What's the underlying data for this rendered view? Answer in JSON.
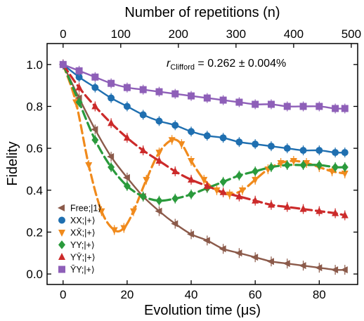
{
  "chart_data": {
    "type": "scatter",
    "xlabel": "Evolution time (μs)",
    "ylabel": "Fidelity",
    "top_xlabel": "Number of repetitions (n)",
    "xlim": [
      -5,
      92
    ],
    "ylim": [
      -0.05,
      1.1
    ],
    "top_xlim": [
      -27.8,
      511.1
    ],
    "x_ticks": [
      0,
      20,
      40,
      60,
      80
    ],
    "y_ticks": [
      "0.0",
      "0.2",
      "0.4",
      "0.6",
      "0.8",
      "1.0"
    ],
    "top_ticks": [
      0,
      100,
      200,
      300,
      400,
      500
    ],
    "annotation": {
      "main": "r",
      "sub": "Clifford",
      "rest": " = 0.262 ± 0.004%"
    },
    "legend_position": "lower-left",
    "series": [
      {
        "name": "Free;|1⟩",
        "color": "#8b5a4a",
        "marker": "triangle-left",
        "x": [
          0,
          5,
          10,
          15,
          20,
          25,
          30,
          35,
          40,
          45,
          50,
          55,
          60,
          65,
          70,
          75,
          80,
          85,
          88
        ],
        "values": [
          1.0,
          0.84,
          0.69,
          0.56,
          0.46,
          0.37,
          0.3,
          0.24,
          0.19,
          0.16,
          0.12,
          0.1,
          0.08,
          0.06,
          0.05,
          0.04,
          0.03,
          0.02,
          0.02
        ]
      },
      {
        "name": "XX;|+⟩",
        "color": "#1f6fb0",
        "marker": "circle",
        "x": [
          0,
          5,
          10,
          15,
          20,
          25,
          30,
          35,
          40,
          45,
          50,
          55,
          60,
          65,
          70,
          75,
          80,
          85,
          88
        ],
        "values": [
          1.0,
          0.94,
          0.89,
          0.84,
          0.8,
          0.76,
          0.73,
          0.71,
          0.68,
          0.66,
          0.65,
          0.63,
          0.62,
          0.61,
          0.6,
          0.59,
          0.59,
          0.58,
          0.58
        ]
      },
      {
        "name": "XX̄;|+⟩",
        "color": "#f08a1c",
        "marker": "triangle-down",
        "x": [
          0,
          4,
          8,
          12,
          16,
          19,
          22,
          26,
          30,
          34,
          37,
          40,
          44,
          48,
          52,
          56,
          60,
          64,
          68,
          72,
          76,
          80,
          84,
          88
        ],
        "values": [
          1.0,
          0.82,
          0.52,
          0.3,
          0.21,
          0.22,
          0.3,
          0.45,
          0.58,
          0.64,
          0.62,
          0.54,
          0.45,
          0.4,
          0.38,
          0.4,
          0.45,
          0.5,
          0.53,
          0.54,
          0.53,
          0.51,
          0.49,
          0.48
        ]
      },
      {
        "name": "YY;|+⟩",
        "color": "#2a9a3c",
        "marker": "diamond",
        "x": [
          0,
          5,
          10,
          15,
          20,
          25,
          30,
          35,
          40,
          45,
          50,
          55,
          60,
          65,
          70,
          75,
          80,
          85,
          88
        ],
        "values": [
          1.0,
          0.82,
          0.64,
          0.51,
          0.42,
          0.37,
          0.35,
          0.36,
          0.38,
          0.41,
          0.44,
          0.47,
          0.49,
          0.51,
          0.52,
          0.52,
          0.52,
          0.51,
          0.51
        ]
      },
      {
        "name": "YȲ;|+⟩",
        "color": "#cc2a2a",
        "marker": "triangle-up",
        "x": [
          0,
          5,
          10,
          15,
          20,
          25,
          30,
          35,
          40,
          45,
          50,
          55,
          60,
          65,
          70,
          75,
          80,
          85,
          88
        ],
        "values": [
          1.0,
          0.89,
          0.8,
          0.72,
          0.65,
          0.59,
          0.54,
          0.49,
          0.45,
          0.42,
          0.39,
          0.37,
          0.35,
          0.33,
          0.32,
          0.31,
          0.3,
          0.29,
          0.28
        ]
      },
      {
        "name": "ȲY;|+⟩",
        "color": "#8e5fb8",
        "marker": "square",
        "x": [
          0,
          5,
          10,
          15,
          20,
          25,
          30,
          35,
          40,
          45,
          50,
          55,
          60,
          65,
          70,
          75,
          80,
          85,
          88
        ],
        "values": [
          1.0,
          0.97,
          0.94,
          0.91,
          0.89,
          0.88,
          0.87,
          0.86,
          0.85,
          0.84,
          0.83,
          0.82,
          0.81,
          0.81,
          0.8,
          0.8,
          0.8,
          0.79,
          0.79
        ]
      }
    ]
  }
}
